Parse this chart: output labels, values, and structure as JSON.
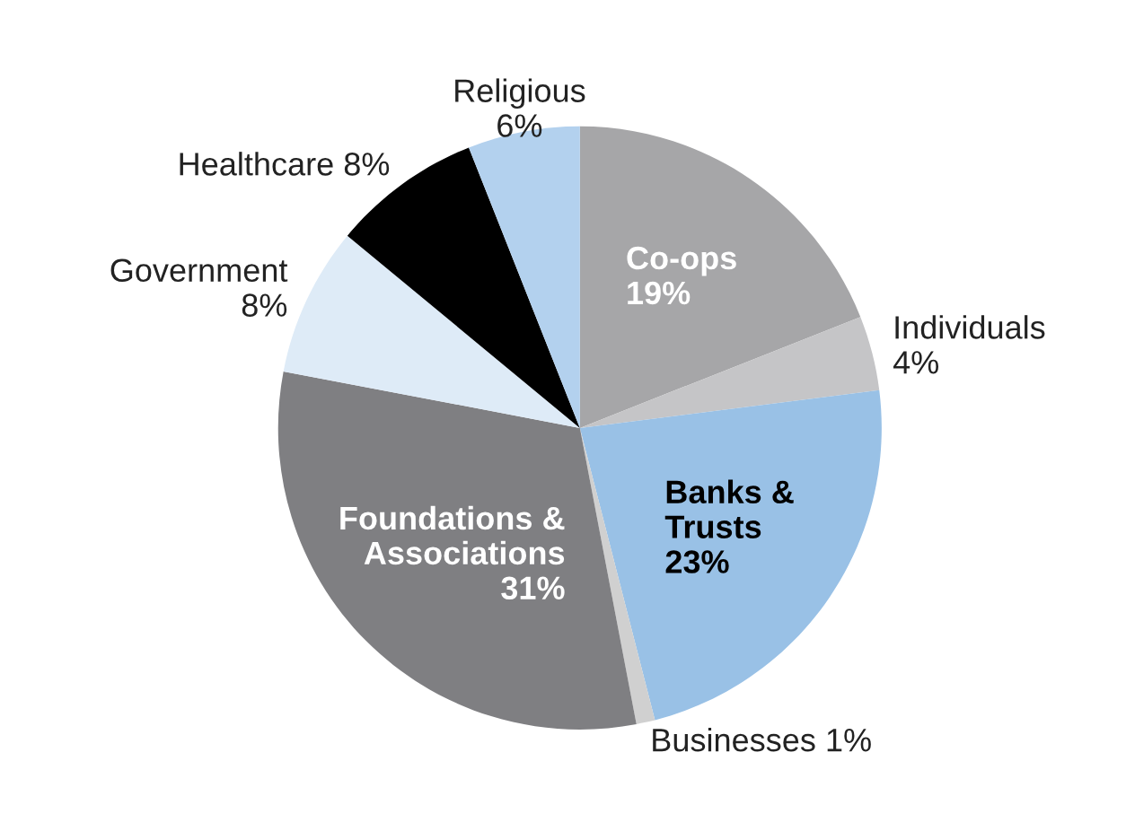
{
  "chart_data": {
    "type": "pie",
    "categories": [
      "Co-ops",
      "Individuals",
      "Banks &\nTrusts",
      "Businesses",
      "Foundations &\nAssociations",
      "Government",
      "Healthcare",
      "Religious"
    ],
    "values": [
      19,
      4,
      23,
      1,
      31,
      8,
      8,
      6
    ],
    "colors": [
      "#a6a6a8",
      "#c5c5c7",
      "#99c1e6",
      "#d0d0d0",
      "#7f7f82",
      "#deebf7",
      "#000000",
      "#b3d1ee"
    ],
    "value_labels": [
      "19%",
      "4%",
      "23%",
      "1%",
      "31%",
      "8%",
      "8%",
      "6%"
    ],
    "legend": false
  }
}
